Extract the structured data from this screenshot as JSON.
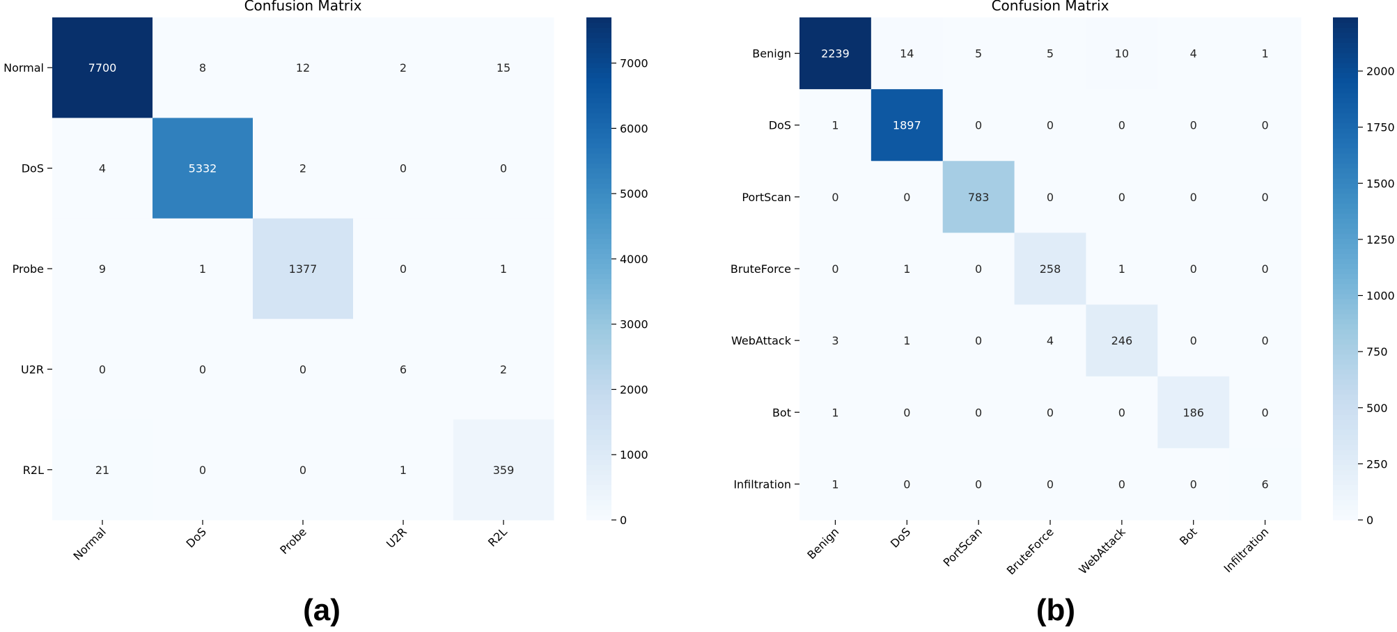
{
  "chart_data": [
    {
      "type": "heatmap",
      "title": "Confusion Matrix",
      "panel_label": "(a)",
      "row_labels": [
        "Normal",
        "DoS",
        "Probe",
        "U2R",
        "R2L"
      ],
      "col_labels": [
        "Normal",
        "DoS",
        "Probe",
        "U2R",
        "R2L"
      ],
      "values": [
        [
          7700,
          8,
          12,
          2,
          15
        ],
        [
          4,
          5332,
          2,
          0,
          0
        ],
        [
          9,
          1,
          1377,
          0,
          1
        ],
        [
          0,
          0,
          0,
          6,
          2
        ],
        [
          21,
          0,
          0,
          1,
          359
        ]
      ],
      "colormap": "Blues",
      "colorbar": {
        "min": 0,
        "max": 7700,
        "ticks": [
          0,
          1000,
          2000,
          3000,
          4000,
          5000,
          6000,
          7000
        ]
      }
    },
    {
      "type": "heatmap",
      "title": "Confusion Matrix",
      "panel_label": "(b)",
      "row_labels": [
        "Benign",
        "DoS",
        "PortScan",
        "BruteForce",
        "WebAttack",
        "Bot",
        "Infiltration"
      ],
      "col_labels": [
        "Benign",
        "DoS",
        "PortScan",
        "BruteForce",
        "WebAttack",
        "Bot",
        "Infiltration"
      ],
      "values": [
        [
          2239,
          14,
          5,
          5,
          10,
          4,
          1
        ],
        [
          1,
          1897,
          0,
          0,
          0,
          0,
          0
        ],
        [
          0,
          0,
          783,
          0,
          0,
          0,
          0
        ],
        [
          0,
          1,
          0,
          258,
          1,
          0,
          0
        ],
        [
          3,
          1,
          0,
          4,
          246,
          0,
          0
        ],
        [
          1,
          0,
          0,
          0,
          0,
          186,
          0
        ],
        [
          1,
          0,
          0,
          0,
          0,
          0,
          6
        ]
      ],
      "colormap": "Blues",
      "colorbar": {
        "min": 0,
        "max": 2239,
        "ticks": [
          0,
          250,
          500,
          750,
          1000,
          1250,
          1500,
          1750,
          2000
        ]
      }
    }
  ]
}
